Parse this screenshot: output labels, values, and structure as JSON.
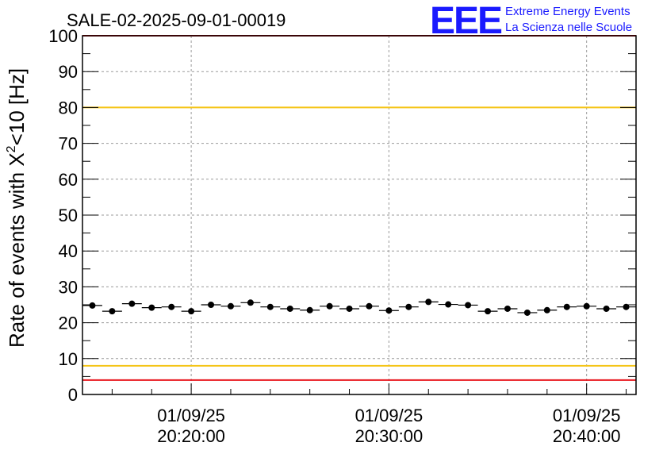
{
  "logo": {
    "mark": "EEE",
    "line1": "Extreme Energy Events",
    "line2": "La Scienza nelle Scuole"
  },
  "chart_data": {
    "type": "scatter",
    "title": "SALE-02-2025-09-01-00019",
    "ylabel_main": "Rate of events with ",
    "ylabel_chi": "X",
    "ylabel_sup": "2",
    "ylabel_tail": "<10 [Hz]",
    "ylim": [
      0,
      100
    ],
    "yticks": [
      0,
      10,
      20,
      30,
      40,
      50,
      60,
      70,
      80,
      90,
      100
    ],
    "xlim_minutes": [
      14.5,
      42.5
    ],
    "xticks": [
      {
        "m": 20,
        "date": "01/09/25",
        "time": "20:20:00"
      },
      {
        "m": 30,
        "date": "01/09/25",
        "time": "20:30:00"
      },
      {
        "m": 40,
        "date": "01/09/25",
        "time": "20:40:00"
      }
    ],
    "grid": true,
    "reference_lines": [
      {
        "value": 80,
        "color": "#f5c518"
      },
      {
        "value": 8,
        "color": "#f5c518"
      },
      {
        "value": 4,
        "color": "#e8141c"
      },
      {
        "value": 100,
        "color": "#e8141c"
      }
    ],
    "bin_width_minutes": 1,
    "x_minutes": [
      15,
      16,
      17,
      18,
      19,
      20,
      21,
      22,
      23,
      24,
      25,
      26,
      27,
      28,
      29,
      30,
      31,
      32,
      33,
      34,
      35,
      36,
      37,
      38,
      39,
      40,
      41,
      42
    ],
    "values": [
      24.8,
      23.2,
      25.3,
      24.2,
      24.4,
      23.2,
      25.0,
      24.6,
      25.6,
      24.4,
      23.9,
      23.5,
      24.6,
      23.9,
      24.6,
      23.4,
      24.4,
      25.8,
      25.1,
      24.9,
      23.2,
      23.9,
      22.8,
      23.5,
      24.4,
      24.6,
      23.9,
      24.4
    ],
    "errors": [
      0.8,
      0.8,
      0.8,
      0.8,
      0.8,
      0.8,
      0.8,
      0.8,
      0.8,
      0.8,
      0.8,
      0.8,
      0.8,
      0.8,
      0.8,
      0.8,
      0.8,
      0.8,
      0.8,
      0.8,
      0.8,
      0.8,
      0.8,
      0.8,
      0.8,
      0.8,
      0.8,
      0.8
    ],
    "marker_color": "#000000"
  }
}
